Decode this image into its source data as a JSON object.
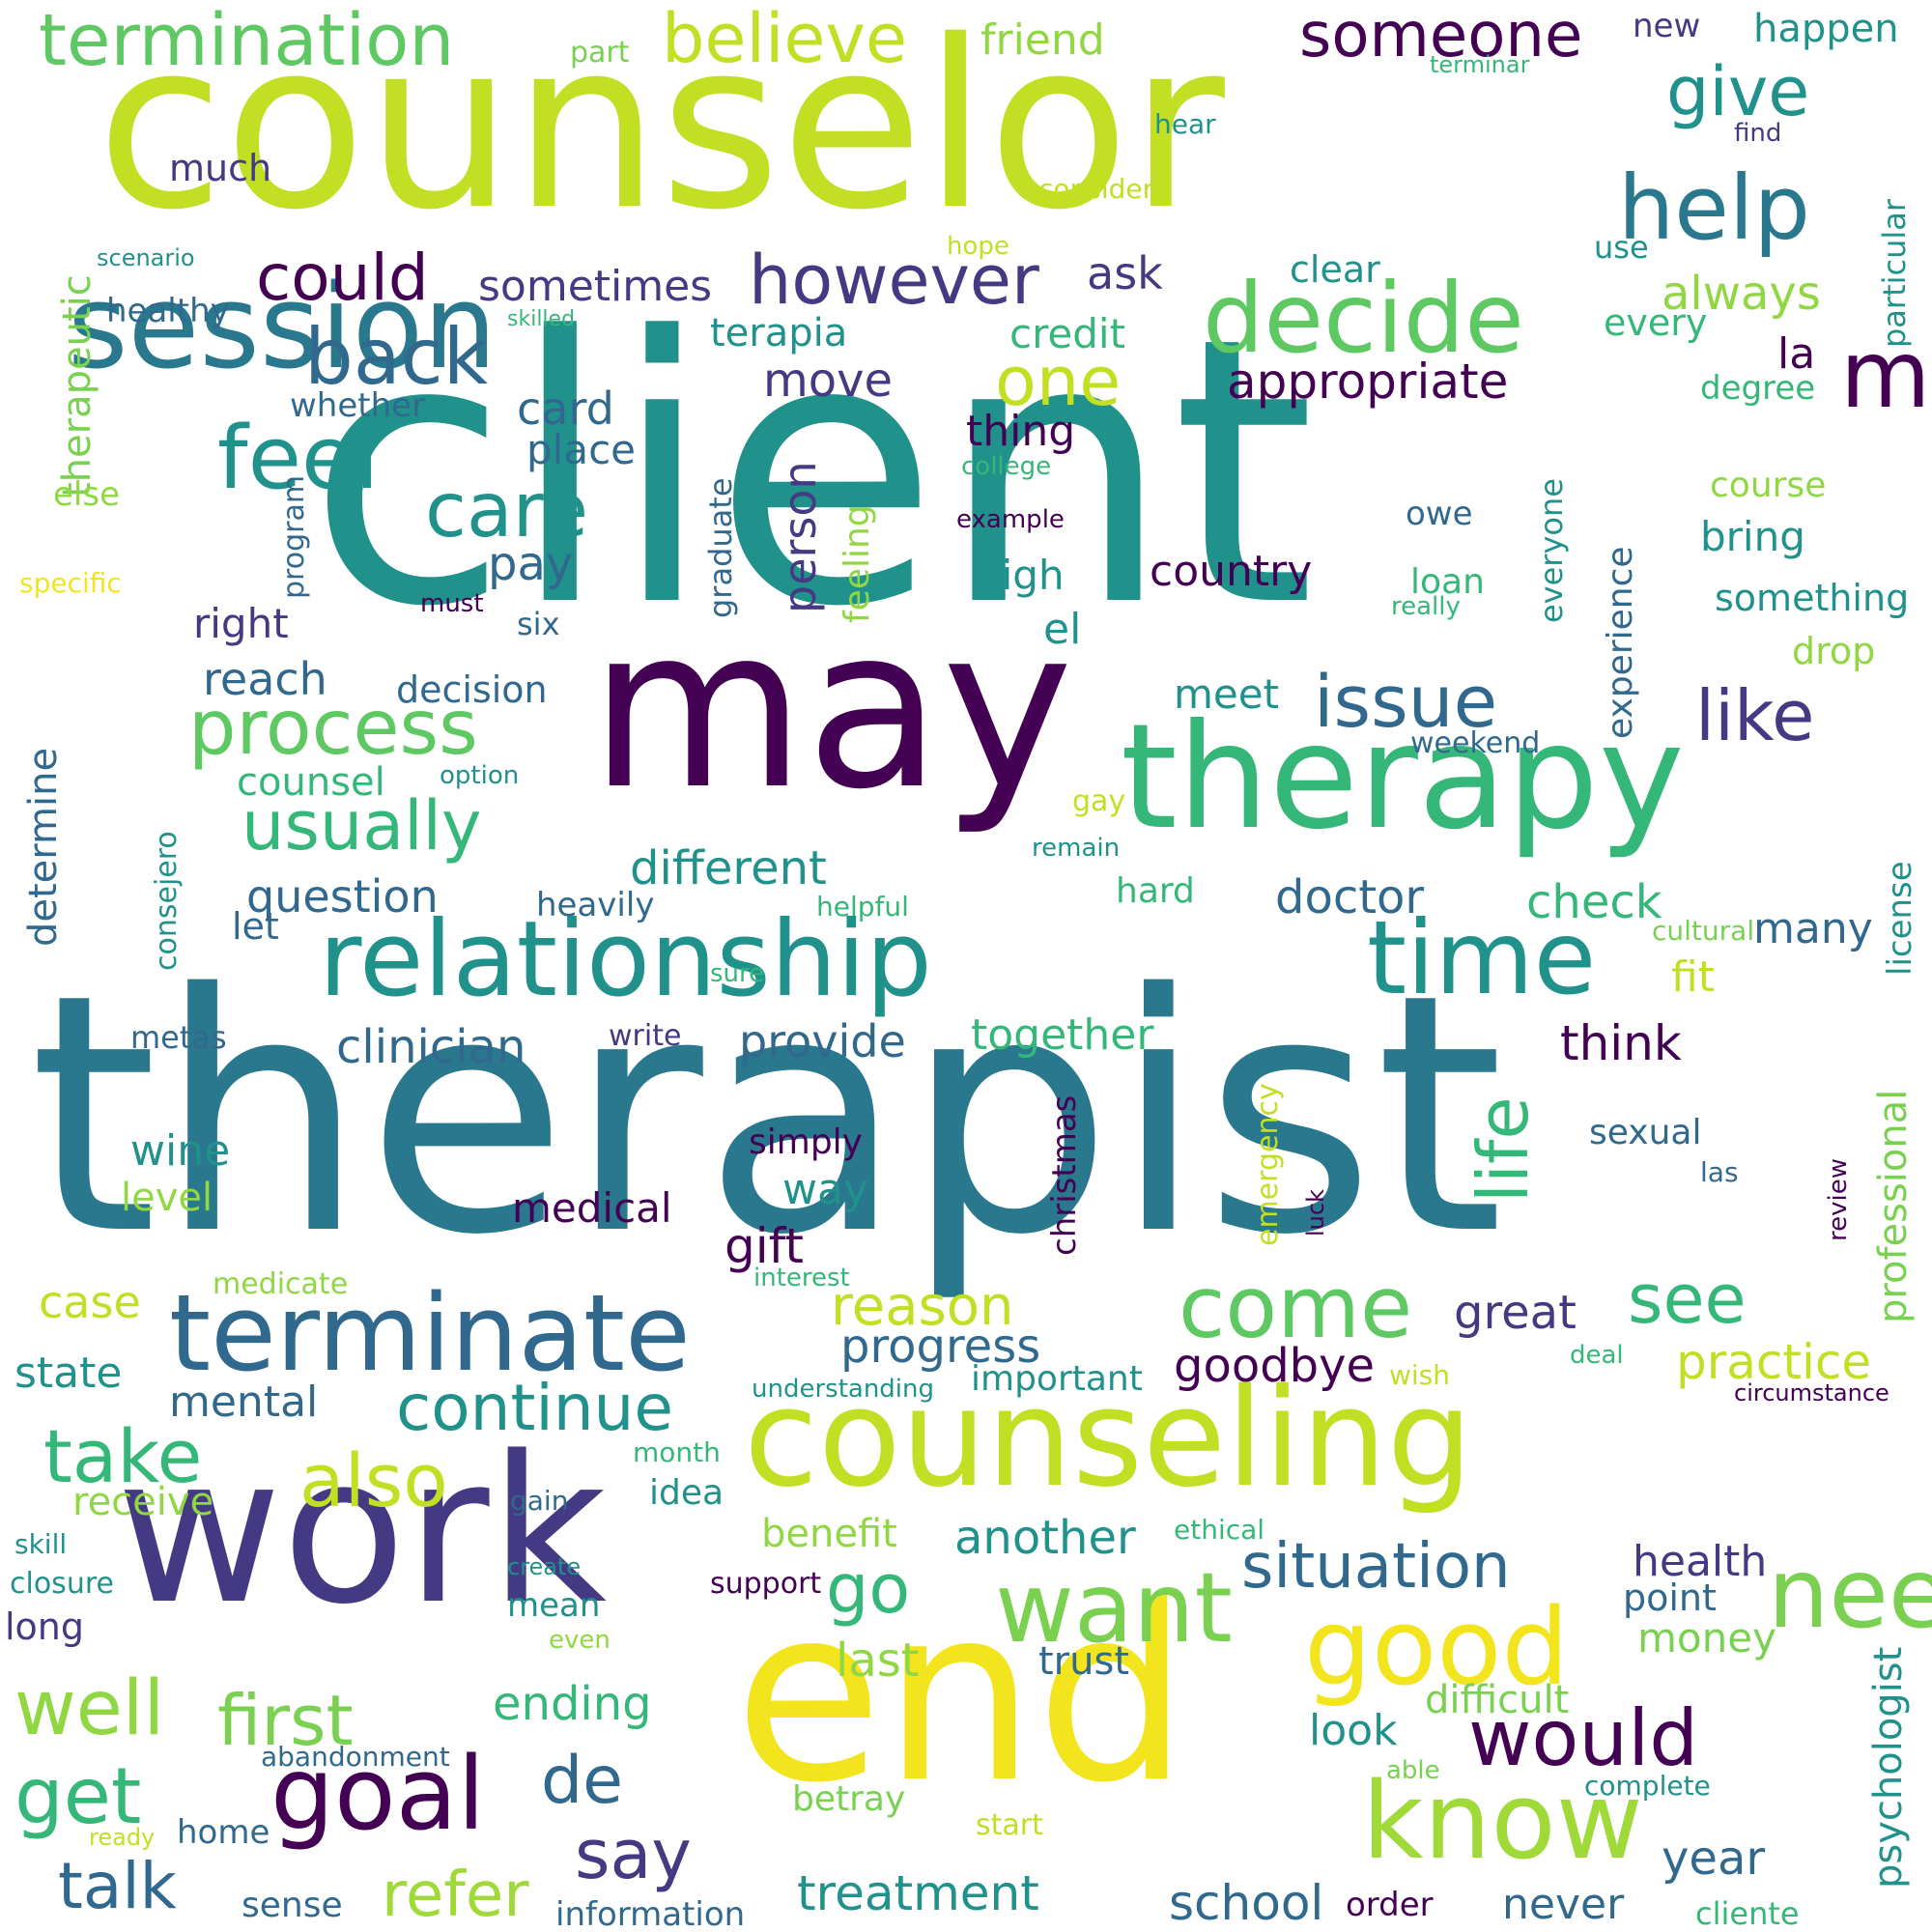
{
  "palette": {
    "background": "#ffffff",
    "dark-purple": "#440154",
    "indigo": "#443983",
    "blue": "#31688e",
    "teal": "#21918c",
    "green": "#35b779",
    "lime": "#90d743",
    "yellow-green": "#c2df23",
    "yellow": "#f2e51d"
  },
  "words": [
    "client",
    "therapist",
    "counselor",
    "may",
    "work",
    "end",
    "therapy",
    "session",
    "relationship",
    "time",
    "counseling",
    "terminate",
    "decide",
    "feel",
    "help",
    "make",
    "good",
    "need",
    "know",
    "want",
    "come",
    "goal",
    "termination",
    "believe",
    "someone",
    "give",
    "however",
    "could",
    "back",
    "care",
    "process",
    "usually",
    "issue",
    "like",
    "one",
    "continue",
    "take",
    "also",
    "first",
    "well",
    "get",
    "talk",
    "say",
    "refer",
    "would",
    "go",
    "see",
    "reason",
    "appropriate",
    "sometimes",
    "ask",
    "friend",
    "new",
    "happen",
    "terminar",
    "part",
    "much",
    "hear",
    "find",
    "consider",
    "therapeutic",
    "hope",
    "scenario",
    "healthy",
    "skilled",
    "clear",
    "terapia",
    "credit",
    "always",
    "every",
    "use",
    "particular",
    "la",
    "move",
    "card",
    "whether",
    "degree",
    "thing",
    "place",
    "else",
    "program",
    "person",
    "graduate",
    "feeling",
    "everyone",
    "experience",
    "college",
    "example",
    "owe",
    "course",
    "bring",
    "country",
    "high",
    "pay",
    "loan",
    "really",
    "something",
    "specific",
    "must",
    "six",
    "el",
    "right",
    "drop",
    "reach",
    "decision",
    "meet",
    "weekend",
    "determine",
    "counsel",
    "option",
    "gay",
    "remain",
    "different",
    "consejero",
    "question",
    "heavily",
    "helpful",
    "hard",
    "doctor",
    "check",
    "cultural",
    "license",
    "let",
    "many",
    "fit",
    "sure",
    "psychologist",
    "professional",
    "clinician",
    "write",
    "provide",
    "together",
    "think",
    "metas",
    "life",
    "christmas",
    "emergency",
    "sexual",
    "simply",
    "wine",
    "way",
    "level",
    "medical",
    "luck",
    "las",
    "review",
    "gift",
    "interest",
    "medicate",
    "case",
    "progress",
    "great",
    "goodbye",
    "state",
    "important",
    "understanding",
    "practice",
    "deal",
    "wish",
    "circumstance",
    "mental",
    "month",
    "receive",
    "idea",
    "gain",
    "benefit",
    "ethical",
    "another",
    "situation",
    "health",
    "skill",
    "closure",
    "create",
    "support",
    "point",
    "money",
    "long",
    "mean",
    "even",
    "last",
    "trust",
    "ending",
    "difficult",
    "look",
    "abandonment",
    "able",
    "complete",
    "betray",
    "ready",
    "home",
    "start",
    "year",
    "treatment",
    "de",
    "school",
    "order",
    "never",
    "sense",
    "information",
    "cliente"
  ]
}
